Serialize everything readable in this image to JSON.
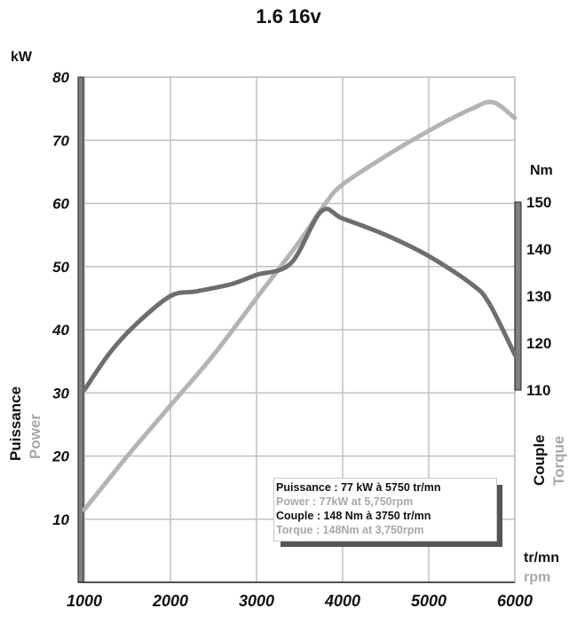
{
  "colors": {
    "power": "#6e6e6e",
    "torque": "#b4b4b4",
    "grid": "#c0c0c0",
    "axis_bar": "#808080",
    "text_dark": "#111111",
    "text_light": "#a8a8a8"
  },
  "chart_data": {
    "type": "line",
    "title": "1.6 16v",
    "x_axis": {
      "label": "tr/mn",
      "label_alt": "rpm",
      "range": [
        1000,
        6000
      ],
      "ticks": [
        1000,
        2000,
        3000,
        4000,
        5000,
        6000
      ]
    },
    "y_axis_left": {
      "unit": "kW",
      "label": "Puissance",
      "label_alt": "Power",
      "range": [
        0,
        80
      ],
      "ticks": [
        10,
        20,
        30,
        40,
        50,
        60,
        70,
        80
      ]
    },
    "y_axis_right": {
      "unit": "Nm",
      "label": "Couple",
      "label_alt": "Torque",
      "range": [
        110,
        150
      ],
      "ticks": [
        110,
        120,
        130,
        140,
        150
      ]
    },
    "grid": true,
    "series": [
      {
        "name": "Power",
        "axis": "left",
        "points": [
          [
            1000,
            11.5
          ],
          [
            1500,
            20
          ],
          [
            2000,
            28
          ],
          [
            2500,
            36
          ],
          [
            3000,
            45
          ],
          [
            3500,
            54
          ],
          [
            3800,
            60
          ],
          [
            4000,
            63
          ],
          [
            4500,
            67.5
          ],
          [
            5000,
            71.5
          ],
          [
            5500,
            75
          ],
          [
            5750,
            76
          ],
          [
            6000,
            73.5
          ]
        ]
      },
      {
        "name": "Torque",
        "axis": "right",
        "points": [
          [
            1000,
            110
          ],
          [
            1300,
            118
          ],
          [
            1600,
            124
          ],
          [
            2000,
            130
          ],
          [
            2300,
            131
          ],
          [
            2700,
            132.5
          ],
          [
            3000,
            134.5
          ],
          [
            3400,
            137
          ],
          [
            3750,
            148
          ],
          [
            4000,
            146.5
          ],
          [
            4500,
            143
          ],
          [
            5000,
            138.5
          ],
          [
            5500,
            132.5
          ],
          [
            5700,
            128.5
          ],
          [
            6000,
            117.5
          ]
        ]
      }
    ],
    "annotations": [
      "Puissance : 77 kW à 5750 tr/mn",
      "Power : 77kW at 5,750rpm",
      "Couple : 148 Nm à 3750 tr/mn",
      "Torque : 148Nm at 3,750rpm"
    ]
  }
}
